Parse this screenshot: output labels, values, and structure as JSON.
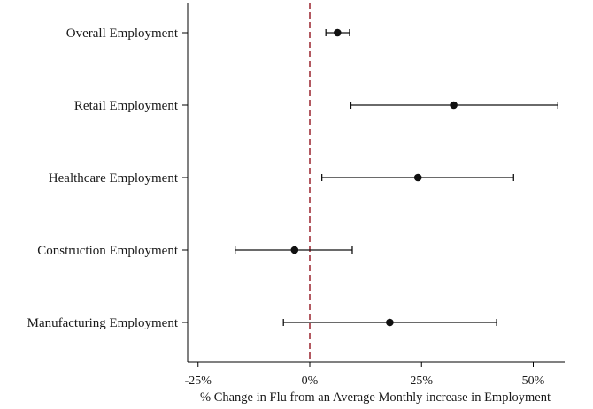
{
  "chart_data": {
    "type": "scatter",
    "subtype": "coefficient-plot",
    "title": "",
    "xlabel": "% Change in Flu from an Average Monthly increase in Employment",
    "ylabel": "",
    "xlim": [
      -27,
      57
    ],
    "xticks": [
      {
        "value": -25,
        "label": "-25%"
      },
      {
        "value": 0,
        "label": "0%"
      },
      {
        "value": 25,
        "label": "25%"
      },
      {
        "value": 50,
        "label": "50%"
      }
    ],
    "reference_line": {
      "x": 0,
      "style": "dashed",
      "color": "#a0303a"
    },
    "marker_color": "#111111",
    "grid": false,
    "categories": [
      "Overall Employment",
      "Retail Employment",
      "Healthcare Employment",
      "Construction Employment",
      "Manufacturing Employment"
    ],
    "estimates": [
      6.2,
      32.2,
      24.2,
      -3.4,
      17.9
    ],
    "ci_low": [
      3.6,
      9.2,
      2.7,
      -16.7,
      -5.9
    ],
    "ci_high": [
      8.9,
      55.5,
      45.6,
      9.5,
      41.8
    ]
  }
}
